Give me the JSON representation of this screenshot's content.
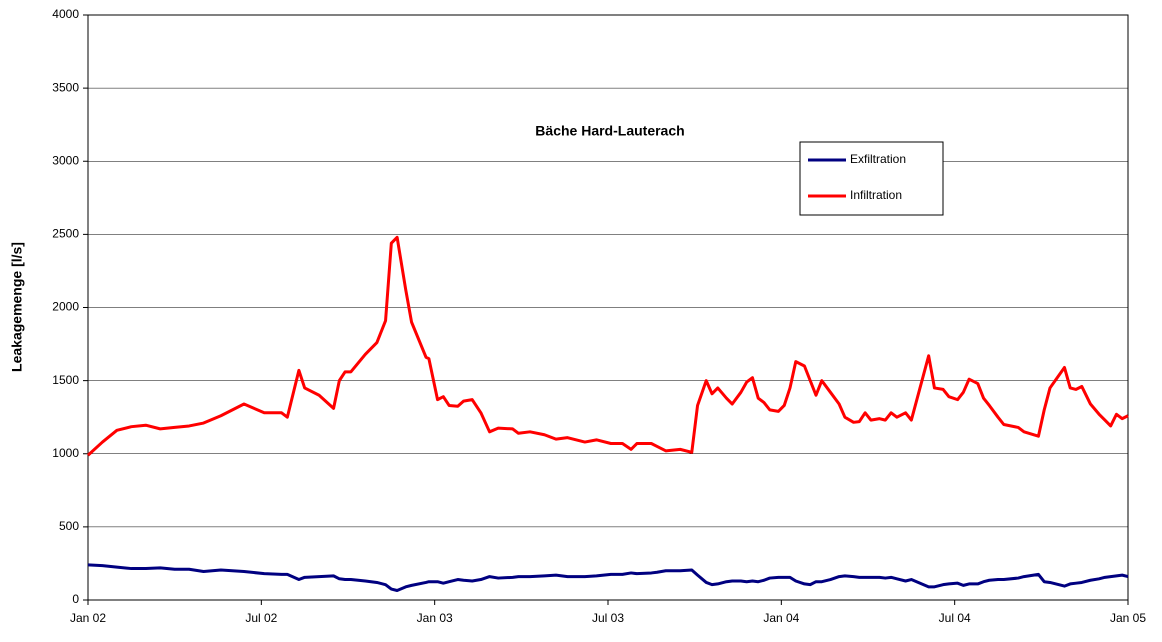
{
  "chart_data": {
    "type": "line",
    "title": "Bäche Hard-Lauterach",
    "y_label": "Leakagemenge [l/s]",
    "x": [
      0,
      0.5,
      1,
      1.5,
      2,
      2.5,
      3,
      3.5,
      4,
      4.6,
      5.4,
      6.1,
      6.7,
      6.9,
      7.3,
      7.5,
      8,
      8.5,
      8.7,
      8.9,
      9.1,
      9.6,
      10,
      10.3,
      10.5,
      10.7,
      11,
      11.2,
      11.7,
      11.8,
      12.1,
      12.3,
      12.5,
      12.8,
      13,
      13.3,
      13.6,
      13.9,
      14.2,
      14.7,
      14.9,
      15.3,
      15.8,
      16.2,
      16.6,
      17.2,
      17.6,
      18.1,
      18.5,
      18.8,
      19,
      19.5,
      19.7,
      20,
      20.5,
      20.9,
      21.1,
      21.4,
      21.6,
      21.8,
      22.1,
      22.3,
      22.6,
      22.8,
      23,
      23.2,
      23.4,
      23.6,
      23.9,
      24.1,
      24.3,
      24.5,
      24.8,
      25,
      25.2,
      25.4,
      25.7,
      26,
      26.2,
      26.5,
      26.7,
      26.9,
      27.1,
      27.4,
      27.6,
      27.8,
      28,
      28.3,
      28.5,
      29.1,
      29.3,
      29.6,
      29.8,
      30.1,
      30.3,
      30.5,
      30.8,
      31,
      31.2,
      31.5,
      31.7,
      32.2,
      32.4,
      32.9,
      33.1,
      33.3,
      33.8,
      34,
      34.2,
      34.4,
      34.7,
      35,
      35.2,
      35.4,
      35.6,
      35.8,
      36
    ],
    "series": [
      {
        "name": "Exfiltration",
        "color": "#000080",
        "values": [
          240,
          235,
          225,
          215,
          215,
          220,
          210,
          210,
          195,
          205,
          195,
          180,
          175,
          175,
          140,
          155,
          160,
          165,
          145,
          140,
          140,
          130,
          120,
          105,
          75,
          65,
          90,
          100,
          120,
          125,
          125,
          115,
          125,
          140,
          135,
          130,
          140,
          160,
          150,
          155,
          160,
          160,
          165,
          170,
          160,
          160,
          165,
          175,
          175,
          185,
          180,
          185,
          190,
          200,
          200,
          205,
          170,
          120,
          105,
          110,
          125,
          130,
          130,
          125,
          130,
          125,
          135,
          150,
          155,
          155,
          155,
          130,
          110,
          105,
          125,
          125,
          140,
          160,
          165,
          160,
          155,
          155,
          155,
          155,
          150,
          155,
          145,
          130,
          140,
          90,
          90,
          105,
          110,
          115,
          100,
          110,
          110,
          125,
          135,
          140,
          140,
          150,
          160,
          175,
          125,
          120,
          95,
          110,
          115,
          120,
          135,
          145,
          155,
          160,
          165,
          170,
          160
        ]
      },
      {
        "name": "Infiltration",
        "color": "#ff0000",
        "values": [
          990,
          1080,
          1160,
          1185,
          1195,
          1170,
          1180,
          1190,
          1210,
          1260,
          1340,
          1280,
          1280,
          1250,
          1570,
          1450,
          1400,
          1310,
          1500,
          1560,
          1560,
          1680,
          1760,
          1910,
          2440,
          2480,
          2120,
          1900,
          1660,
          1650,
          1370,
          1390,
          1330,
          1325,
          1360,
          1370,
          1280,
          1150,
          1175,
          1170,
          1140,
          1150,
          1130,
          1100,
          1110,
          1080,
          1095,
          1070,
          1070,
          1030,
          1070,
          1070,
          1050,
          1020,
          1030,
          1010,
          1330,
          1500,
          1410,
          1450,
          1380,
          1340,
          1420,
          1490,
          1520,
          1380,
          1350,
          1300,
          1290,
          1330,
          1450,
          1630,
          1600,
          1500,
          1400,
          1500,
          1420,
          1340,
          1250,
          1215,
          1220,
          1280,
          1230,
          1240,
          1230,
          1280,
          1250,
          1280,
          1230,
          1670,
          1450,
          1440,
          1390,
          1370,
          1420,
          1510,
          1480,
          1380,
          1330,
          1250,
          1200,
          1180,
          1150,
          1120,
          1300,
          1450,
          1590,
          1450,
          1440,
          1460,
          1340,
          1270,
          1230,
          1190,
          1270,
          1240,
          1260
        ]
      }
    ],
    "xlim": [
      0,
      36
    ],
    "xticks": [
      {
        "value": 0,
        "label": "Jan 02"
      },
      {
        "value": 6,
        "label": "Jul 02"
      },
      {
        "value": 12,
        "label": "Jan 03"
      },
      {
        "value": 18,
        "label": "Jul 03"
      },
      {
        "value": 24,
        "label": "Jan 04"
      },
      {
        "value": 30,
        "label": "Jul 04"
      },
      {
        "value": 36,
        "label": "Jan 05"
      }
    ],
    "ylim": [
      0,
      4000
    ],
    "yticks": [
      0,
      500,
      1000,
      1500,
      2000,
      2500,
      3000,
      3500,
      4000
    ],
    "grid": true,
    "legend": "upper right"
  }
}
